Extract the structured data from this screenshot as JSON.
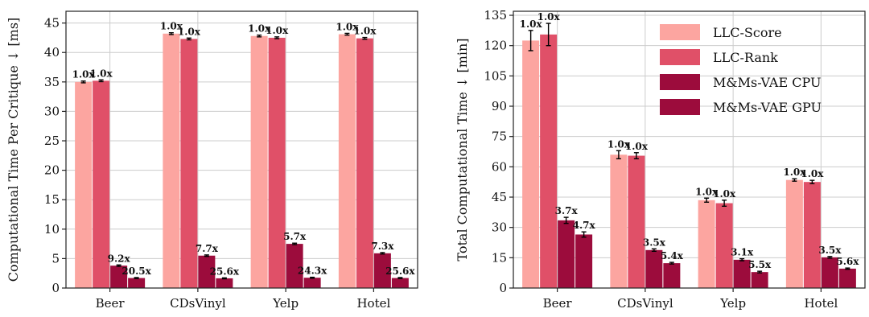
{
  "chart_data": [
    {
      "type": "bar",
      "ylabel": "Computational Time Per Critique ↓ [ms]",
      "xlabel": "",
      "categories": [
        "Beer",
        "CDsVinyl",
        "Yelp",
        "Hotel"
      ],
      "ylim": [
        0,
        47
      ],
      "yticks": [
        0,
        5,
        10,
        15,
        20,
        25,
        30,
        35,
        40,
        45
      ],
      "grid": true,
      "legend": "none",
      "series": [
        {
          "name": "LLC-Score",
          "color": "#fca5a0",
          "values": [
            35.0,
            43.2,
            42.8,
            43.1
          ],
          "errors": [
            0.15,
            0.15,
            0.15,
            0.15
          ],
          "labels": [
            "1.0x",
            "1.0x",
            "1.0x",
            "1.0x"
          ]
        },
        {
          "name": "LLC-Rank",
          "color": "#e05068",
          "values": [
            35.2,
            42.3,
            42.5,
            42.4
          ],
          "errors": [
            0.15,
            0.15,
            0.15,
            0.15
          ],
          "labels": [
            "1.0x",
            "1.0x",
            "1.0x",
            "1.0x"
          ]
        },
        {
          "name": "M&Ms-VAE CPU",
          "color": "#9c0c3c",
          "values": [
            3.8,
            5.5,
            7.5,
            5.9
          ],
          "errors": [
            0.12,
            0.12,
            0.12,
            0.12
          ],
          "labels": [
            "9.2x",
            "7.7x",
            "5.7x",
            "7.3x"
          ]
        },
        {
          "name": "M&Ms-VAE GPU",
          "color": "#9c0c3c",
          "values": [
            1.7,
            1.65,
            1.75,
            1.7
          ],
          "errors": [
            0.08,
            0.08,
            0.08,
            0.08
          ],
          "labels": [
            "20.5x",
            "25.6x",
            "24.3x",
            "25.6x"
          ]
        }
      ]
    },
    {
      "type": "bar",
      "ylabel": "Total Computational Time ↓ [min]",
      "xlabel": "",
      "categories": [
        "Beer",
        "CDsVinyl",
        "Yelp",
        "Hotel"
      ],
      "ylim": [
        0,
        137
      ],
      "yticks": [
        0,
        15,
        30,
        45,
        60,
        75,
        90,
        105,
        120,
        135
      ],
      "grid": true,
      "legend": "top-right",
      "series": [
        {
          "name": "LLC-Score",
          "color": "#fca5a0",
          "values": [
            122.5,
            66.0,
            43.5,
            53.5
          ],
          "errors": [
            5.0,
            2.0,
            1.0,
            0.6
          ],
          "labels": [
            "1.0x",
            "1.0x",
            "1.0x",
            "1.0x"
          ]
        },
        {
          "name": "LLC-Rank",
          "color": "#e05068",
          "values": [
            125.5,
            65.5,
            42.0,
            52.5
          ],
          "errors": [
            5.5,
            1.5,
            1.5,
            0.8
          ],
          "labels": [
            "1.0x",
            "1.0x",
            "1.0x",
            "1.0x"
          ]
        },
        {
          "name": "M&Ms-VAE CPU",
          "color": "#9c0c3c",
          "values": [
            33.5,
            18.8,
            14.0,
            15.2
          ],
          "errors": [
            1.5,
            0.6,
            0.5,
            0.4
          ],
          "labels": [
            "3.7x",
            "3.5x",
            "3.1x",
            "3.5x"
          ]
        },
        {
          "name": "M&Ms-VAE GPU",
          "color": "#9c0c3c",
          "values": [
            26.5,
            12.3,
            7.9,
            9.6
          ],
          "errors": [
            1.3,
            0.4,
            0.4,
            0.3
          ],
          "labels": [
            "4.7x",
            "5.4x",
            "5.5x",
            "5.6x"
          ]
        }
      ]
    }
  ]
}
